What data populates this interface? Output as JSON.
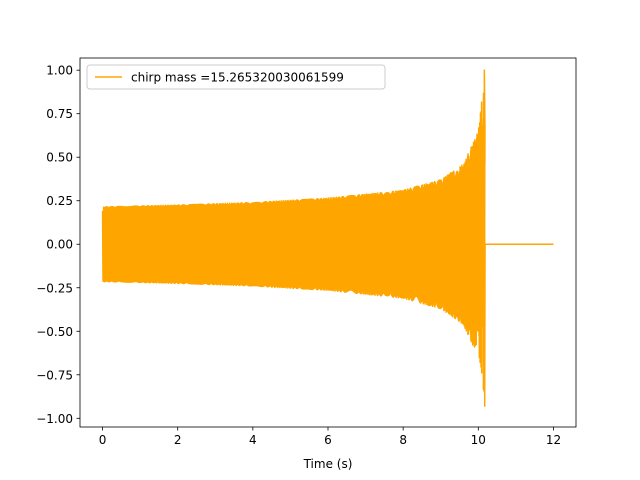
{
  "chart_data": {
    "type": "line",
    "title": "",
    "xlabel": "Time (s)",
    "ylabel": "",
    "xlim": [
      -0.6,
      12.6
    ],
    "ylim": [
      -1.05,
      1.07
    ],
    "xticks": [
      0,
      2,
      4,
      6,
      8,
      10,
      12
    ],
    "xtick_labels": [
      "0",
      "2",
      "4",
      "6",
      "8",
      "10",
      "12"
    ],
    "yticks": [
      -1.0,
      -0.75,
      -0.5,
      -0.25,
      0.0,
      0.25,
      0.5,
      0.75,
      1.0
    ],
    "ytick_labels": [
      "−1.00",
      "−0.75",
      "−0.50",
      "−0.25",
      "0.00",
      "0.25",
      "0.50",
      "0.75",
      "1.00"
    ],
    "grid": false,
    "legend_position": "upper-left",
    "series": [
      {
        "name": "chirp mass =15.265320030061599",
        "color": "#ffa500",
        "shape": "chirp",
        "t_start": 0.0,
        "t_merger": 10.18,
        "t_end": 12.0,
        "initial_amplitude": 0.215,
        "peak_amplitude_positive": 1.0,
        "peak_amplitude_negative": -0.93,
        "initial_frequency_hz": 30,
        "post_merger_value": 0.0,
        "envelope_samples": [
          {
            "t": 0.0,
            "amp": 0.215
          },
          {
            "t": 2.0,
            "amp": 0.225
          },
          {
            "t": 4.0,
            "amp": 0.24
          },
          {
            "t": 6.0,
            "amp": 0.265
          },
          {
            "t": 8.0,
            "amp": 0.31
          },
          {
            "t": 9.0,
            "amp": 0.37
          },
          {
            "t": 9.6,
            "amp": 0.46
          },
          {
            "t": 10.0,
            "amp": 0.65
          },
          {
            "t": 10.18,
            "amp": 1.0
          }
        ]
      }
    ]
  }
}
